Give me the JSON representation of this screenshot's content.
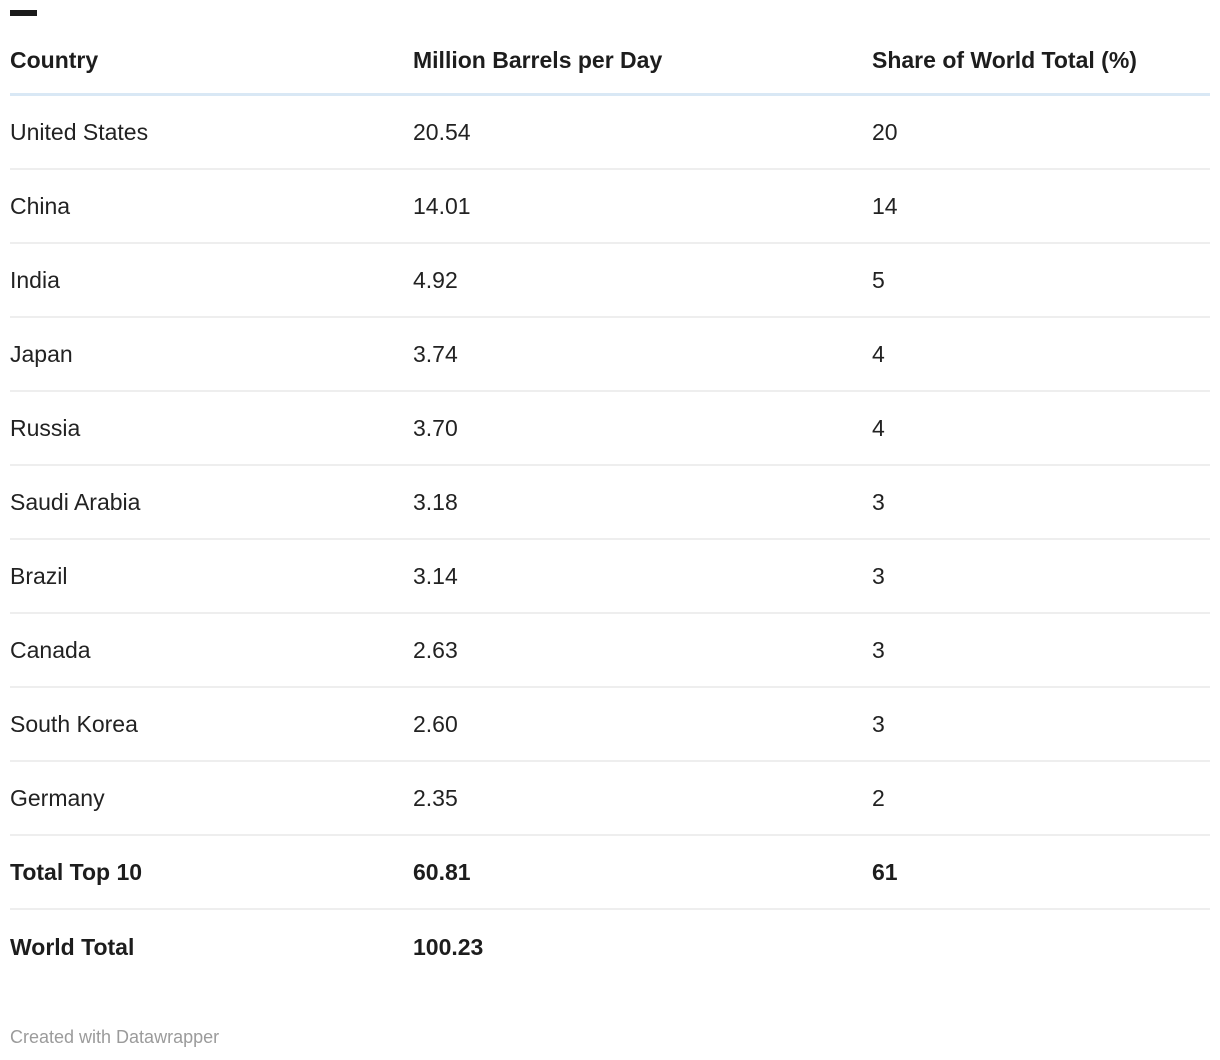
{
  "title_dash": {
    "color": "#1a1a1a"
  },
  "chart_data": {
    "type": "table",
    "columns": [
      "Country",
      "Million Barrels per Day",
      "Share of World Total (%)"
    ],
    "rows": [
      [
        "United States",
        "20.54",
        "20"
      ],
      [
        "China",
        "14.01",
        "14"
      ],
      [
        "India",
        "4.92",
        "5"
      ],
      [
        "Japan",
        "3.74",
        "4"
      ],
      [
        "Russia",
        "3.70",
        "4"
      ],
      [
        "Saudi Arabia",
        "3.18",
        "3"
      ],
      [
        "Brazil",
        "3.14",
        "3"
      ],
      [
        "Canada",
        "2.63",
        "3"
      ],
      [
        "South Korea",
        "2.60",
        "3"
      ],
      [
        "Germany",
        "2.35",
        "2"
      ]
    ],
    "totals": [
      [
        "Total Top 10",
        "60.81",
        "61"
      ],
      [
        "World Total",
        "100.23",
        ""
      ]
    ],
    "layout_hints": {
      "header_rule_color": "#d9e8f5",
      "row_rule_color": "#eeeeee",
      "grid": "horizontal-rules-only",
      "alignment": "left"
    }
  },
  "footer": {
    "credit": "Created with Datawrapper"
  },
  "colors": {
    "text": "#222222",
    "heading_text": "#1d1d1d",
    "muted_text": "#9b9b9b",
    "header_rule": "#d9e8f5",
    "row_rule": "#eeeeee",
    "title_dash": "#1a1a1a"
  }
}
